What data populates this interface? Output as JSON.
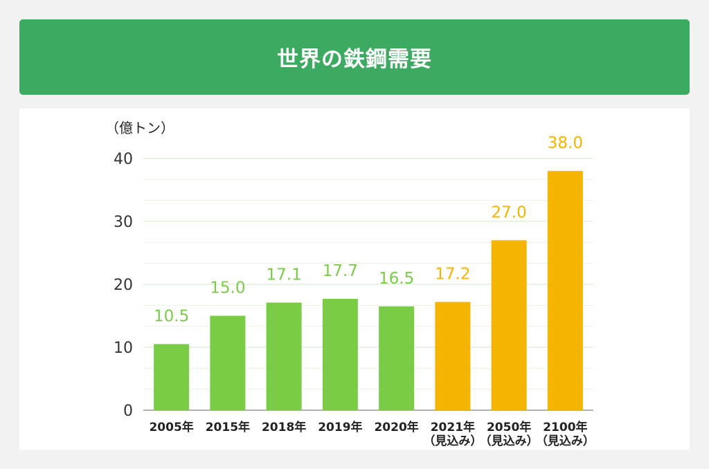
{
  "header": {
    "title": "世界の鉄鋼需要"
  },
  "chart_data": {
    "type": "bar",
    "title": "世界の鉄鋼需要",
    "unit_label": "（億トン）",
    "categories": [
      [
        "2005年"
      ],
      [
        "2015年"
      ],
      [
        "2018年"
      ],
      [
        "2019年"
      ],
      [
        "2020年"
      ],
      [
        "2021年",
        "（見込み）"
      ],
      [
        "2050年",
        "（見込み）"
      ],
      [
        "2100年",
        "（見込み）"
      ]
    ],
    "values": [
      10.5,
      15.0,
      17.1,
      17.7,
      16.5,
      17.2,
      27.0,
      38.0
    ],
    "value_labels": [
      "10.5",
      "15.0",
      "17.1",
      "17.7",
      "16.5",
      "17.2",
      "27.0",
      "38.0"
    ],
    "ylim": [
      0,
      40
    ],
    "yticks": [
      0,
      10,
      20,
      30,
      40
    ],
    "grid": true,
    "colors": {
      "actual": "#7acc47",
      "forecast": "#f4b400",
      "header": "#3cab61",
      "grid_major": "#cfe8c8",
      "grid_minor": "#e6f2e2",
      "axis": "#999999"
    },
    "forecast_from_index": 5
  }
}
